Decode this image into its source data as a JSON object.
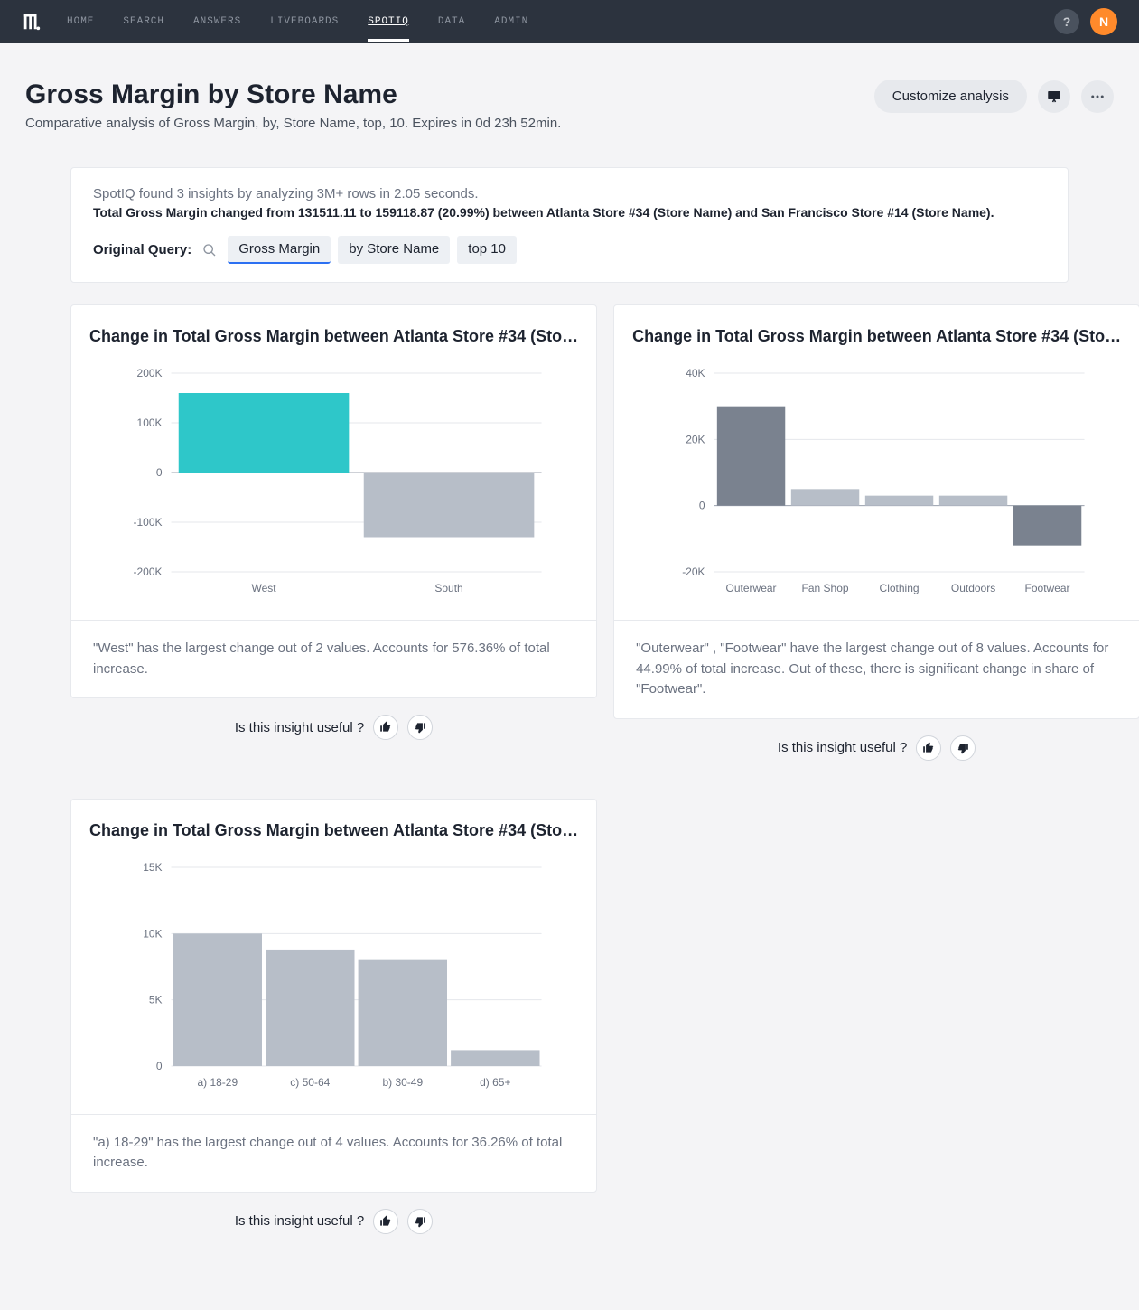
{
  "nav": {
    "items": [
      "HOME",
      "SEARCH",
      "ANSWERS",
      "LIVEBOARDS",
      "SPOTIQ",
      "DATA",
      "ADMIN"
    ],
    "active_index": 4,
    "help_label": "?",
    "avatar_initial": "N",
    "avatar_bg": "#ff8a2b"
  },
  "header": {
    "title": "Gross Margin by Store Name",
    "subtitle": "Comparative analysis of Gross Margin, by, Store Name, top, 10. Expires in 0d 23h 52min.",
    "customize_label": "Customize analysis"
  },
  "summary": {
    "line1": "SpotIQ found 3 insights by analyzing 3M+ rows in 2.05 seconds.",
    "line2": "Total Gross Margin changed from 131511.11 to 159118.87 (20.99%) between Atlanta Store #34 (Store Name) and San Francisco Store #14 (Store Name).",
    "query_label": "Original Query:",
    "chips": [
      "Gross Margin",
      "by Store Name",
      "top 10"
    ],
    "active_chip_index": 0
  },
  "useful_prompt": "Is this insight useful ?",
  "colors": {
    "teal": "#2ec7c9",
    "grey_bar": "#b7bec8",
    "dark_grey_bar": "#7a828f",
    "grid": "#e5e7eb",
    "axis_text": "#6b7280"
  },
  "insights": [
    {
      "title": "Change in Total Gross Margin between Atlanta Store #34 (Sto…",
      "footer": "\"West\" has the largest change out of 2 values. Accounts for 576.36% of total increase.",
      "chart": {
        "type": "bar",
        "ylim": [
          -200000,
          200000
        ],
        "yticks": [
          {
            "v": 200000,
            "l": "200K"
          },
          {
            "v": 100000,
            "l": "100K"
          },
          {
            "v": 0,
            "l": "0"
          },
          {
            "v": -100000,
            "l": "-100K"
          },
          {
            "v": -200000,
            "l": "-200K"
          }
        ],
        "categories": [
          "West",
          "South"
        ],
        "values": [
          160000,
          -130000
        ],
        "bar_colors": [
          "#2ec7c9",
          "#b7bec8"
        ],
        "bar_width": 0.92
      }
    },
    {
      "title": "Change in Total Gross Margin between Atlanta Store #34 (Sto…",
      "footer": "\"Outerwear\" , \"Footwear\" have the largest change out of 8 values. Accounts for 44.99% of total increase. Out of these, there is significant change in share of \"Footwear\".",
      "chart": {
        "type": "bar",
        "ylim": [
          -20000,
          40000
        ],
        "yticks": [
          {
            "v": 40000,
            "l": "40K"
          },
          {
            "v": 20000,
            "l": "20K"
          },
          {
            "v": 0,
            "l": "0"
          },
          {
            "v": -20000,
            "l": "-20K"
          }
        ],
        "categories": [
          "Outerwear",
          "Fan Shop",
          "Clothing",
          "Outdoors",
          "Footwear"
        ],
        "values": [
          30000,
          5000,
          3000,
          3000,
          -12000
        ],
        "bar_colors": [
          "#7a828f",
          "#b7bec8",
          "#b7bec8",
          "#b7bec8",
          "#7a828f"
        ],
        "bar_width": 0.92
      }
    },
    {
      "title": "Change in Total Gross Margin between Atlanta Store #34 (Sto…",
      "footer": "\"a) 18-29\" has the largest change out of 4 values. Accounts for 36.26% of total increase.",
      "chart": {
        "type": "bar",
        "ylim": [
          0,
          15000
        ],
        "yticks": [
          {
            "v": 15000,
            "l": "15K"
          },
          {
            "v": 10000,
            "l": "10K"
          },
          {
            "v": 5000,
            "l": "5K"
          },
          {
            "v": 0,
            "l": "0"
          }
        ],
        "categories": [
          "a) 18-29",
          "c) 50-64",
          "b) 30-49",
          "d) 65+"
        ],
        "values": [
          10000,
          8800,
          8000,
          1200
        ],
        "bar_colors": [
          "#b7bec8",
          "#b7bec8",
          "#b7bec8",
          "#b7bec8"
        ],
        "bar_width": 0.96
      }
    }
  ]
}
